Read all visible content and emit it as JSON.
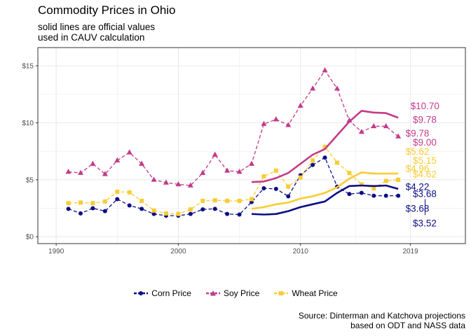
{
  "chart_data": {
    "type": "line",
    "title": "Commodity Prices in Ohio",
    "subtitle": "solid lines are official values\nused in CAUV calculation",
    "caption": "Source: Dinterman and Katchova projections\nbased on ODT and NASS data",
    "xlabel": "",
    "ylabel": "",
    "xlim": [
      1988.5,
      2023.5
    ],
    "ylim": [
      -0.6,
      16.6
    ],
    "x_ticks": [
      1990,
      2000,
      2010,
      2019
    ],
    "x_tick_labels": [
      "1990",
      "2000",
      "2010",
      "2019"
    ],
    "y_ticks": [
      0,
      5,
      10,
      15
    ],
    "y_tick_labels": [
      "$0",
      "$5",
      "$10",
      "$15"
    ],
    "grid": true,
    "legend_position": "bottom",
    "colors": {
      "corn": "#0d0d85",
      "soy": "#c23b8a",
      "wheat": "#f8cc35",
      "grid": "#ebebeb",
      "panel_border": "#333333"
    },
    "legend": [
      {
        "key": "corn",
        "label": "Corn Price"
      },
      {
        "key": "soy",
        "label": "Soy Price"
      },
      {
        "key": "wheat",
        "label": "Wheat Price"
      }
    ],
    "series": [
      {
        "key": "corn",
        "style": "dashed",
        "marker": "circle",
        "x": [
          1991,
          1992,
          1993,
          1994,
          1995,
          1996,
          1997,
          1998,
          1999,
          2000,
          2001,
          2002,
          2003,
          2004,
          2005,
          2006,
          2007,
          2008,
          2009,
          2010,
          2011,
          2012,
          2013,
          2014,
          2015,
          2016,
          2017,
          2018
        ],
        "y": [
          2.45,
          2.05,
          2.5,
          2.25,
          3.3,
          2.75,
          2.45,
          2.0,
          1.85,
          1.85,
          2.0,
          2.4,
          2.45,
          2.0,
          1.95,
          3.05,
          4.25,
          4.2,
          3.55,
          5.4,
          6.3,
          6.95,
          4.4,
          3.75,
          3.85,
          3.6,
          3.6,
          3.6
        ]
      },
      {
        "key": "soy",
        "style": "dashed",
        "marker": "triangle",
        "x": [
          1991,
          1992,
          1993,
          1994,
          1995,
          1996,
          1997,
          1998,
          1999,
          2000,
          2001,
          2002,
          2003,
          2004,
          2005,
          2006,
          2007,
          2008,
          2009,
          2010,
          2011,
          2012,
          2013,
          2014,
          2015,
          2016,
          2017,
          2018
        ],
        "y": [
          5.7,
          5.6,
          6.4,
          5.5,
          6.7,
          7.4,
          6.4,
          5.0,
          4.75,
          4.6,
          4.5,
          5.6,
          7.2,
          5.8,
          5.7,
          6.4,
          9.9,
          10.3,
          9.8,
          11.5,
          13.0,
          14.6,
          13.0,
          10.2,
          9.2,
          9.7,
          9.7,
          8.8
        ]
      },
      {
        "key": "wheat",
        "style": "dashed",
        "marker": "square",
        "x": [
          1991,
          1992,
          1993,
          1994,
          1995,
          1996,
          1997,
          1998,
          1999,
          2000,
          2001,
          2002,
          2003,
          2004,
          2005,
          2006,
          2007,
          2008,
          2009,
          2010,
          2011,
          2012,
          2013,
          2014,
          2015,
          2016,
          2017,
          2018
        ],
        "y": [
          2.95,
          3.0,
          2.95,
          3.1,
          3.95,
          3.9,
          3.15,
          2.3,
          2.05,
          2.0,
          2.4,
          3.15,
          3.2,
          3.15,
          3.15,
          3.3,
          5.3,
          5.8,
          4.4,
          5.2,
          6.7,
          7.9,
          6.5,
          5.6,
          4.6,
          4.25,
          4.9,
          5.0
        ]
      },
      {
        "key": "corn",
        "style": "solid",
        "marker": "none",
        "x": [
          2006,
          2007,
          2008,
          2009,
          2010,
          2011,
          2012,
          2013,
          2014,
          2015,
          2016,
          2017,
          2018
        ],
        "y": [
          2.0,
          1.95,
          2.0,
          2.25,
          2.6,
          2.85,
          3.1,
          3.85,
          4.45,
          4.5,
          4.45,
          4.5,
          4.2
        ]
      },
      {
        "key": "soy",
        "style": "solid",
        "marker": "none",
        "x": [
          2006,
          2007,
          2008,
          2009,
          2010,
          2011,
          2012,
          2013,
          2014,
          2015,
          2016,
          2017,
          2018
        ],
        "y": [
          4.8,
          4.85,
          5.15,
          5.6,
          6.4,
          7.2,
          7.7,
          8.9,
          10.1,
          11.05,
          10.9,
          10.85,
          10.45
        ]
      },
      {
        "key": "wheat",
        "style": "solid",
        "marker": "none",
        "x": [
          2006,
          2007,
          2008,
          2009,
          2010,
          2011,
          2012,
          2013,
          2014,
          2015,
          2016,
          2017,
          2018
        ],
        "y": [
          2.45,
          2.6,
          2.85,
          3.0,
          3.35,
          3.55,
          3.85,
          4.35,
          5.1,
          5.65,
          5.55,
          5.55,
          5.55
        ]
      }
    ],
    "annotations": [
      {
        "text": "$10.70",
        "series": "soy",
        "x": 2019.0,
        "y": 11.5
      },
      {
        "text": "$9.78",
        "series": "soy",
        "x": 2019.2,
        "y": 10.3
      },
      {
        "text": "$9.78",
        "series": "soy",
        "x": 2018.6,
        "y": 9.1
      },
      {
        "text": "$9.00",
        "series": "soy",
        "x": 2019.2,
        "y": 8.3
      },
      {
        "text": "$5.62",
        "series": "wheat",
        "x": 2018.6,
        "y": 7.5
      },
      {
        "text": "$5.15",
        "series": "wheat",
        "x": 2019.2,
        "y": 6.7
      },
      {
        "text": "$4.96",
        "series": "wheat",
        "x": 2018.6,
        "y": 6.0
      },
      {
        "text": "$4.62",
        "series": "wheat",
        "x": 2019.2,
        "y": 5.5
      },
      {
        "text": "$4.22",
        "series": "corn",
        "x": 2018.6,
        "y": 4.4
      },
      {
        "text": "$3.68",
        "series": "corn",
        "x": 2019.2,
        "y": 3.8
      },
      {
        "text": "$3.68",
        "series": "corn",
        "x": 2018.6,
        "y": 2.5
      },
      {
        "text": "$3.52",
        "series": "corn",
        "x": 2019.2,
        "y": 1.2
      }
    ]
  }
}
